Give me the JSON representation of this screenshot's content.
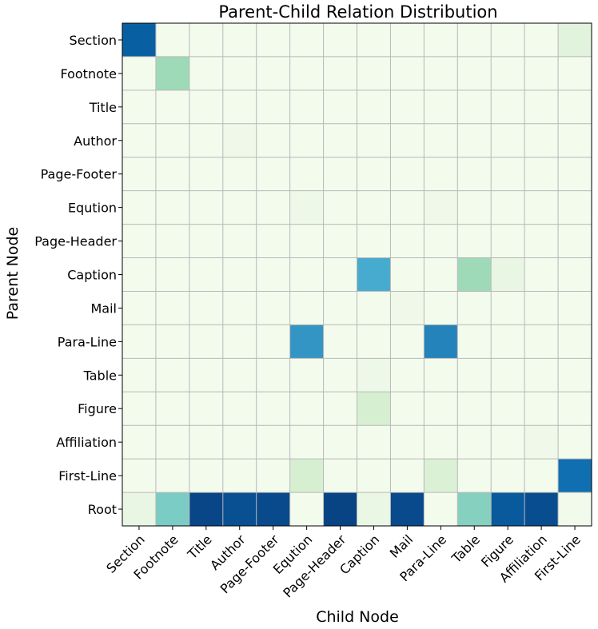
{
  "chart_data": {
    "type": "heatmap",
    "title": "Parent-Child Relation Distribution",
    "xlabel": "Child Node",
    "ylabel": "Parent Node",
    "x_categories": [
      "Section",
      "Footnote",
      "Title",
      "Author",
      "Page-Footer",
      "Eqution",
      "Page-Header",
      "Caption",
      "Mail",
      "Para-Line",
      "Table",
      "Figure",
      "Affiliation",
      "First-Line"
    ],
    "y_categories": [
      "Section",
      "Footnote",
      "Title",
      "Author",
      "Page-Footer",
      "Eqution",
      "Page-Header",
      "Caption",
      "Mail",
      "Para-Line",
      "Table",
      "Figure",
      "Affiliation",
      "First-Line",
      "Root"
    ],
    "value_range": [
      0,
      1
    ],
    "colormap": "GnBu",
    "grid": true,
    "values": [
      [
        0.9,
        0.02,
        0.02,
        0.02,
        0.02,
        0.02,
        0.02,
        0.02,
        0.02,
        0.02,
        0.02,
        0.02,
        0.02,
        0.12
      ],
      [
        0.02,
        0.4,
        0.02,
        0.02,
        0.02,
        0.02,
        0.02,
        0.02,
        0.02,
        0.02,
        0.02,
        0.02,
        0.02,
        0.02
      ],
      [
        0.02,
        0.02,
        0.02,
        0.02,
        0.02,
        0.02,
        0.02,
        0.02,
        0.02,
        0.02,
        0.02,
        0.02,
        0.02,
        0.02
      ],
      [
        0.02,
        0.02,
        0.02,
        0.04,
        0.02,
        0.02,
        0.02,
        0.02,
        0.02,
        0.02,
        0.02,
        0.02,
        0.02,
        0.02
      ],
      [
        0.02,
        0.02,
        0.02,
        0.02,
        0.02,
        0.02,
        0.02,
        0.02,
        0.02,
        0.02,
        0.02,
        0.02,
        0.02,
        0.02
      ],
      [
        0.02,
        0.02,
        0.02,
        0.02,
        0.02,
        0.05,
        0.02,
        0.02,
        0.02,
        0.04,
        0.02,
        0.02,
        0.02,
        0.02
      ],
      [
        0.02,
        0.02,
        0.02,
        0.02,
        0.02,
        0.02,
        0.02,
        0.02,
        0.02,
        0.02,
        0.02,
        0.02,
        0.02,
        0.02
      ],
      [
        0.02,
        0.02,
        0.02,
        0.02,
        0.02,
        0.02,
        0.02,
        0.65,
        0.02,
        0.02,
        0.4,
        0.08,
        0.02,
        0.02
      ],
      [
        0.02,
        0.02,
        0.02,
        0.02,
        0.02,
        0.02,
        0.02,
        0.02,
        0.04,
        0.02,
        0.02,
        0.02,
        0.02,
        0.02
      ],
      [
        0.02,
        0.02,
        0.02,
        0.02,
        0.02,
        0.72,
        0.02,
        0.02,
        0.02,
        0.78,
        0.02,
        0.02,
        0.02,
        0.02
      ],
      [
        0.02,
        0.02,
        0.02,
        0.02,
        0.02,
        0.02,
        0.02,
        0.05,
        0.02,
        0.02,
        0.02,
        0.02,
        0.02,
        0.02
      ],
      [
        0.02,
        0.02,
        0.02,
        0.02,
        0.02,
        0.02,
        0.02,
        0.18,
        0.02,
        0.02,
        0.02,
        0.02,
        0.02,
        0.02
      ],
      [
        0.02,
        0.02,
        0.02,
        0.02,
        0.02,
        0.02,
        0.02,
        0.02,
        0.02,
        0.02,
        0.02,
        0.02,
        0.04,
        0.02
      ],
      [
        0.02,
        0.02,
        0.02,
        0.02,
        0.02,
        0.18,
        0.02,
        0.02,
        0.02,
        0.16,
        0.02,
        0.02,
        0.02,
        0.85
      ],
      [
        0.08,
        0.5,
        0.98,
        0.95,
        0.97,
        0.02,
        0.99,
        0.07,
        0.97,
        0.02,
        0.47,
        0.92,
        0.96,
        0.03
      ]
    ]
  }
}
